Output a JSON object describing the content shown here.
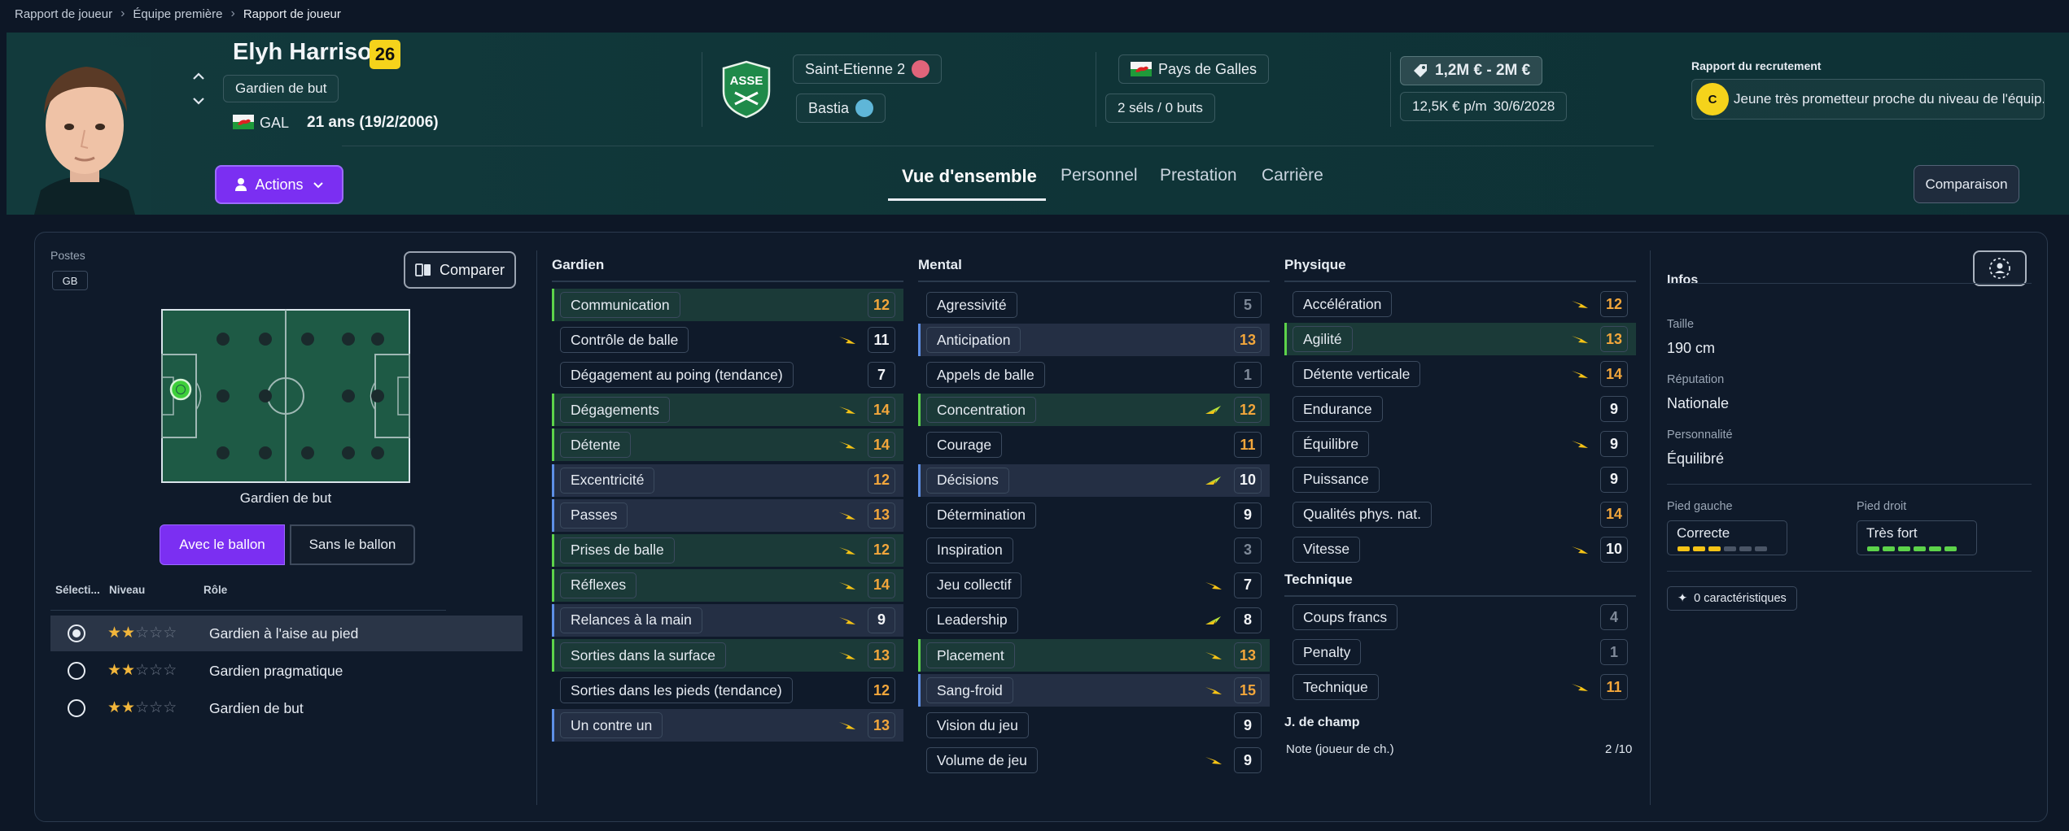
{
  "breadcrumb": {
    "items": [
      "Rapport de joueur",
      "Équipe première",
      "Rapport de joueur"
    ]
  },
  "player": {
    "name": "Elyh Harrison",
    "number": "26",
    "position": "Gardien de but",
    "nationality_code": "GAL",
    "age_dob": "21 ans (19/2/2006)"
  },
  "clubs": {
    "current": "Saint-Etienne 2",
    "loan": "Bastia"
  },
  "country": {
    "name": "Pays de Galles",
    "caps": "2 séls / 0 buts"
  },
  "finance": {
    "value": "1,2M € - 2M €",
    "wage": "12,5K € p/m",
    "contract_end": "30/6/2028"
  },
  "recruitment": {
    "title": "Rapport du recrutement",
    "grade": "C",
    "summary": "Jeune très prometteur proche du niveau de l'équip..."
  },
  "actions_label": "Actions",
  "tabs": [
    "Vue d'ensemble",
    "Personnel",
    "Prestation",
    "Carrière"
  ],
  "compare_top_label": "Comparaison",
  "left": {
    "positions_label": "Postes",
    "position_badge": "GB",
    "compare_label": "Comparer",
    "pitch_caption": "Gardien de but",
    "toggle": [
      "Avec le ballon",
      "Sans le ballon"
    ],
    "headers": [
      "Sélecti...",
      "Niveau",
      "Rôle"
    ],
    "roles": [
      {
        "name": "Gardien à l'aise au pied",
        "stars": 2,
        "selected": true
      },
      {
        "name": "Gardien pragmatique",
        "stars": 2,
        "selected": false
      },
      {
        "name": "Gardien de but",
        "stars": 2,
        "selected": false
      }
    ]
  },
  "attributes": {
    "gardien": {
      "title": "Gardien",
      "rows": [
        {
          "n": "Communication",
          "v": "12",
          "c": "o",
          "h": "g",
          "a": ""
        },
        {
          "n": "Contrôle de balle",
          "v": "11",
          "c": "w",
          "h": "",
          "a": "up"
        },
        {
          "n": "Dégagement au poing (tendance)",
          "v": "7",
          "c": "w",
          "h": "",
          "a": ""
        },
        {
          "n": "Dégagements",
          "v": "14",
          "c": "o",
          "h": "g",
          "a": "up"
        },
        {
          "n": "Détente",
          "v": "14",
          "c": "o",
          "h": "g",
          "a": "up"
        },
        {
          "n": "Excentricité",
          "v": "12",
          "c": "o",
          "h": "b",
          "a": ""
        },
        {
          "n": "Passes",
          "v": "13",
          "c": "o",
          "h": "b",
          "a": "up"
        },
        {
          "n": "Prises de balle",
          "v": "12",
          "c": "o",
          "h": "g",
          "a": "up"
        },
        {
          "n": "Réflexes",
          "v": "14",
          "c": "o",
          "h": "g",
          "a": "up"
        },
        {
          "n": "Relances à la main",
          "v": "9",
          "c": "w",
          "h": "b",
          "a": "up"
        },
        {
          "n": "Sorties dans la surface",
          "v": "13",
          "c": "o",
          "h": "g",
          "a": "up"
        },
        {
          "n": "Sorties dans les pieds (tendance)",
          "v": "12",
          "c": "o",
          "h": "",
          "a": ""
        },
        {
          "n": "Un contre un",
          "v": "13",
          "c": "o",
          "h": "b",
          "a": "up"
        }
      ]
    },
    "mental": {
      "title": "Mental",
      "rows": [
        {
          "n": "Agressivité",
          "v": "5",
          "c": "d",
          "h": "",
          "a": ""
        },
        {
          "n": "Anticipation",
          "v": "13",
          "c": "o",
          "h": "b",
          "a": ""
        },
        {
          "n": "Appels de balle",
          "v": "1",
          "c": "d",
          "h": "",
          "a": ""
        },
        {
          "n": "Concentration",
          "v": "12",
          "c": "o",
          "h": "g",
          "a": "mix"
        },
        {
          "n": "Courage",
          "v": "11",
          "c": "o",
          "h": "",
          "a": ""
        },
        {
          "n": "Décisions",
          "v": "10",
          "c": "w",
          "h": "b",
          "a": "mix"
        },
        {
          "n": "Détermination",
          "v": "9",
          "c": "w",
          "h": "",
          "a": ""
        },
        {
          "n": "Inspiration",
          "v": "3",
          "c": "d",
          "h": "",
          "a": ""
        },
        {
          "n": "Jeu collectif",
          "v": "7",
          "c": "w",
          "h": "",
          "a": "up"
        },
        {
          "n": "Leadership",
          "v": "8",
          "c": "w",
          "h": "",
          "a": "mix"
        },
        {
          "n": "Placement",
          "v": "13",
          "c": "o",
          "h": "g",
          "a": "up"
        },
        {
          "n": "Sang-froid",
          "v": "15",
          "c": "o",
          "h": "b",
          "a": "up"
        },
        {
          "n": "Vision du jeu",
          "v": "9",
          "c": "w",
          "h": "",
          "a": ""
        },
        {
          "n": "Volume de jeu",
          "v": "9",
          "c": "w",
          "h": "",
          "a": "up"
        }
      ]
    },
    "physique": {
      "title": "Physique",
      "rows": [
        {
          "n": "Accélération",
          "v": "12",
          "c": "o",
          "h": "",
          "a": "up"
        },
        {
          "n": "Agilité",
          "v": "13",
          "c": "o",
          "h": "g",
          "a": "up"
        },
        {
          "n": "Détente verticale",
          "v": "14",
          "c": "o",
          "h": "",
          "a": "up"
        },
        {
          "n": "Endurance",
          "v": "9",
          "c": "w",
          "h": "",
          "a": ""
        },
        {
          "n": "Équilibre",
          "v": "9",
          "c": "w",
          "h": "",
          "a": "up"
        },
        {
          "n": "Puissance",
          "v": "9",
          "c": "w",
          "h": "",
          "a": ""
        },
        {
          "n": "Qualités phys. nat.",
          "v": "14",
          "c": "o",
          "h": "",
          "a": ""
        },
        {
          "n": "Vitesse",
          "v": "10",
          "c": "w",
          "h": "",
          "a": "up"
        }
      ]
    },
    "technique": {
      "title": "Technique",
      "rows": [
        {
          "n": "Coups francs",
          "v": "4",
          "c": "d",
          "h": "",
          "a": ""
        },
        {
          "n": "Penalty",
          "v": "1",
          "c": "d",
          "h": "",
          "a": ""
        },
        {
          "n": "Technique",
          "v": "11",
          "c": "o",
          "h": "",
          "a": "up"
        }
      ]
    },
    "field_player": {
      "title": "J. de champ",
      "label": "Note (joueur de ch.)",
      "value": "2 /10"
    }
  },
  "info": {
    "title": "Infos",
    "height_label": "Taille",
    "height": "190 cm",
    "reputation_label": "Réputation",
    "reputation": "Nationale",
    "personality_label": "Personnalité",
    "personality": "Équilibré",
    "left_foot_label": "Pied gauche",
    "left_foot": "Correcte",
    "left_foot_level": 3,
    "right_foot_label": "Pied droit",
    "right_foot": "Très fort",
    "right_foot_level": 6,
    "traits": "0 caractéristiques"
  },
  "colors": {
    "accent": "#7b2ff2",
    "orange": "#f2a63b",
    "green_bar": "#5dd34a",
    "blue_bar": "#5d8fe6",
    "yellow": "#f5d31b"
  }
}
